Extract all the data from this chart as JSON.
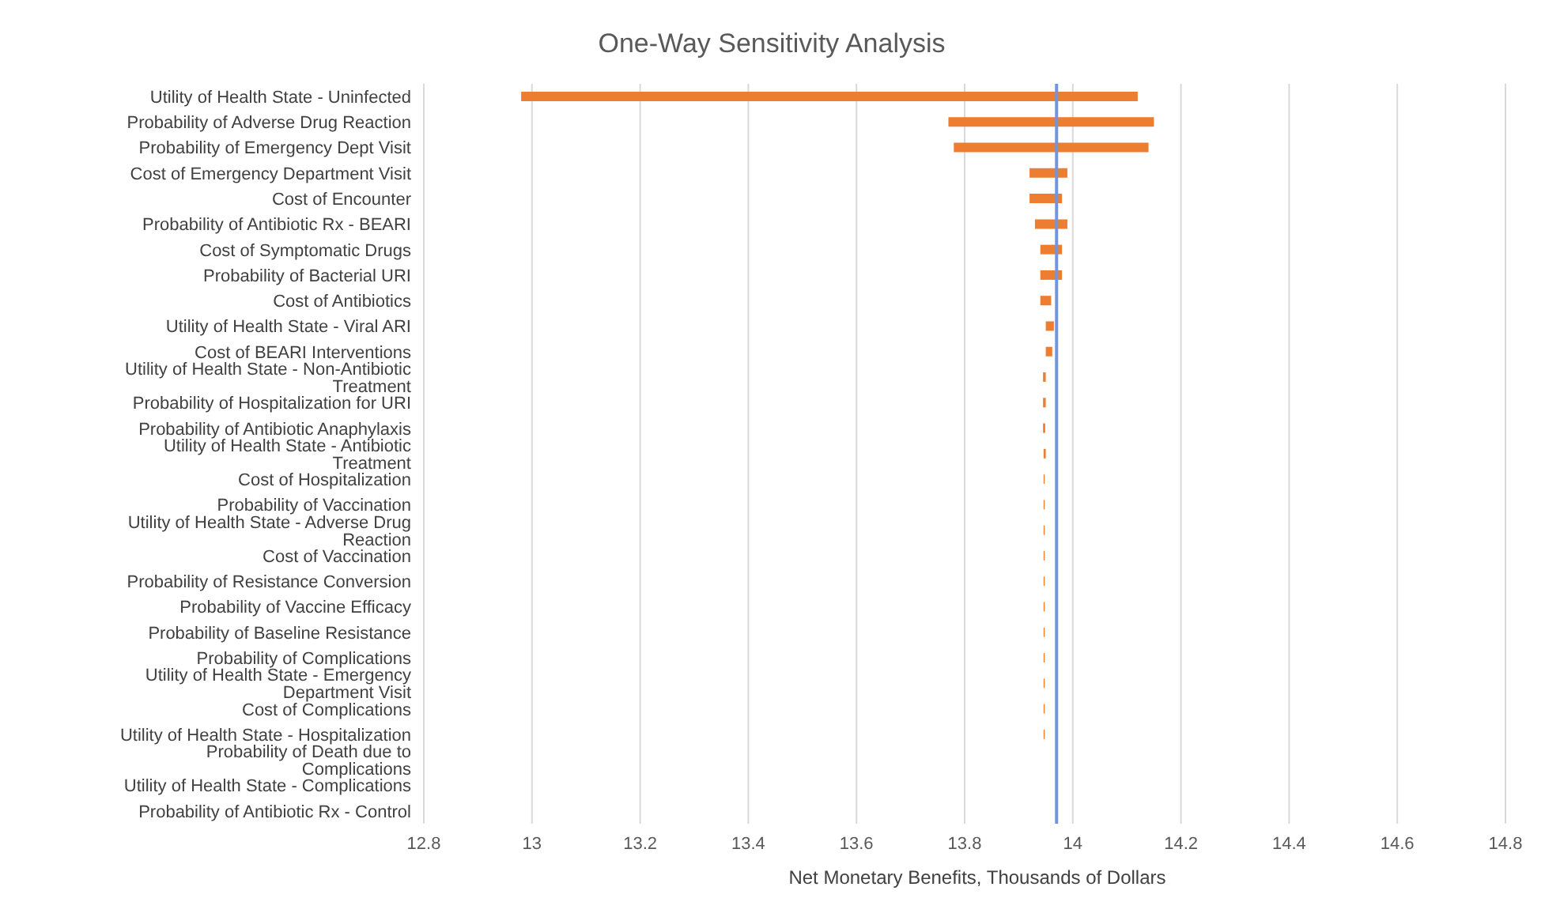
{
  "chart_data": {
    "type": "bar",
    "orientation": "horizontal",
    "title": "One-Way Sensitivity Analysis",
    "xlabel": "Net Monetary Benefits, Thousands of Dollars",
    "categories": [
      "Utility of Health State - Uninfected",
      "Probability of Adverse Drug Reaction",
      "Probability of Emergency Dept Visit",
      "Cost of Emergency Department Visit",
      "Cost of Encounter",
      "Probability of Antibiotic Rx - BEARI",
      "Cost of Symptomatic Drugs",
      "Probability of Bacterial URI",
      "Cost of Antibiotics",
      "Utility of Health State - Viral ARI",
      "Cost of BEARI Interventions",
      "Utility of Health State - Non-Antibiotic Treatment",
      "Probability of Hospitalization for URI",
      "Probability of Antibiotic Anaphylaxis",
      "Utility of Health State - Antibiotic Treatment",
      "Cost of Hospitalization",
      "Probability of Vaccination",
      "Utility of Health State - Adverse Drug Reaction",
      "Cost of Vaccination",
      "Probability of Resistance Conversion",
      "Probability of Vaccine Efficacy",
      "Probability of Baseline Resistance",
      "Probability of Complications",
      "Utility of Health State - Emergency Department Visit",
      "Cost of Complications",
      "Utility of Health State - Hospitalization",
      "Probability of Death due to Complications",
      "Utility of Health State - Complications",
      "Probability of Antibiotic Rx - Control"
    ],
    "base": [
      12.98,
      13.77,
      13.78,
      13.92,
      13.92,
      13.93,
      13.94,
      13.94,
      13.94,
      13.95,
      13.95,
      13.945,
      13.945,
      13.945,
      13.946,
      13.946,
      13.946,
      13.946,
      13.946,
      13.946,
      13.946,
      13.946,
      13.946,
      13.946,
      13.946,
      13.946,
      null,
      null,
      null
    ],
    "values": [
      1.14,
      0.38,
      0.36,
      0.07,
      0.06,
      0.06,
      0.04,
      0.04,
      0.02,
      0.015,
      0.012,
      0.005,
      0.005,
      0.004,
      0.004,
      0.002,
      0.002,
      0.002,
      0.002,
      0.002,
      0.002,
      0.002,
      0.002,
      0.002,
      0.002,
      0.002,
      null,
      null,
      null
    ],
    "color": "#ed7d31",
    "xlim": [
      12.8,
      14.8
    ],
    "xticks": [
      12.8,
      13,
      13.2,
      13.4,
      13.6,
      13.8,
      14,
      14.2,
      14.4,
      14.6,
      14.8
    ],
    "ref_lines": [
      {
        "axis": "x",
        "value": 13.97,
        "color": "#7295dd"
      }
    ],
    "grid": "x",
    "legend": false
  }
}
